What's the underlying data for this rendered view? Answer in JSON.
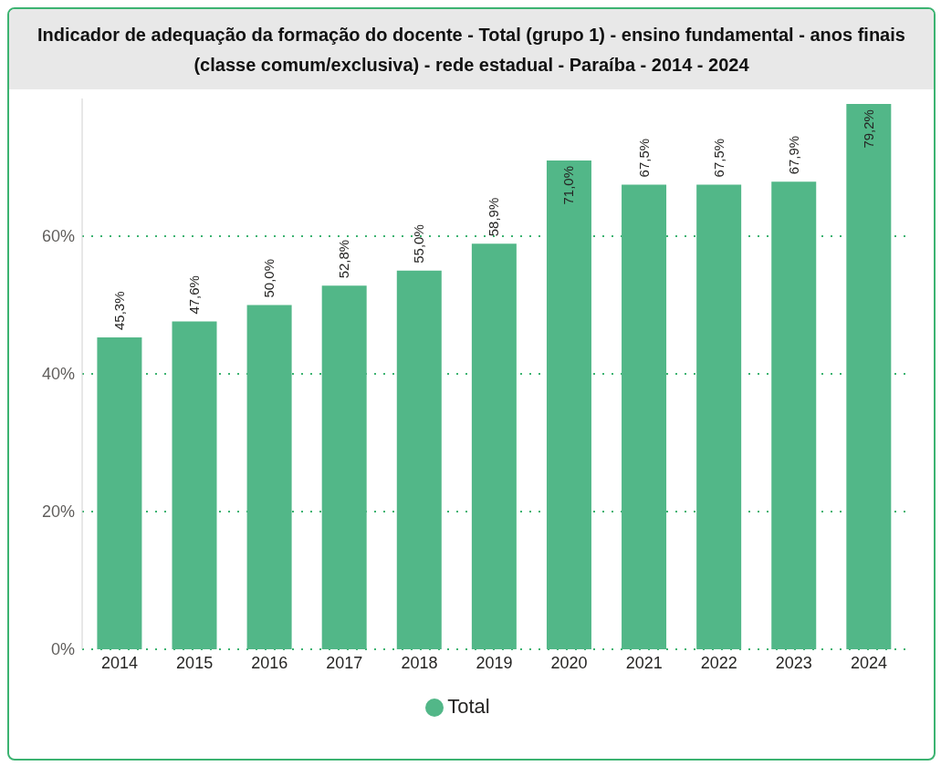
{
  "chart_data": {
    "type": "bar",
    "title": "Indicador de adequação da formação do docente - Total (grupo 1) - ensino fundamental - anos finais (classe comum/exclusiva) - rede estadual - Paraíba - 2014 - 2024",
    "categories": [
      "2014",
      "2015",
      "2016",
      "2017",
      "2018",
      "2019",
      "2020",
      "2021",
      "2022",
      "2023",
      "2024"
    ],
    "series": [
      {
        "name": "Total",
        "color": "#52b788",
        "values": [
          45.3,
          47.6,
          50.0,
          52.8,
          55.0,
          58.9,
          71.0,
          67.5,
          67.5,
          67.9,
          79.2
        ],
        "value_labels": [
          "45,3%",
          "47,6%",
          "50,0%",
          "52,8%",
          "55,0%",
          "58,9%",
          "71,0%",
          "67,5%",
          "67,5%",
          "67,9%",
          "79,2%"
        ]
      }
    ],
    "ylim": [
      0,
      80
    ],
    "yticks": [
      {
        "value": 0,
        "label": "0%"
      },
      {
        "value": 20,
        "label": "20%"
      },
      {
        "value": 40,
        "label": "40%"
      },
      {
        "value": 60,
        "label": "60%"
      }
    ],
    "grid": "y",
    "legend": "bottom",
    "marker": "circle"
  }
}
